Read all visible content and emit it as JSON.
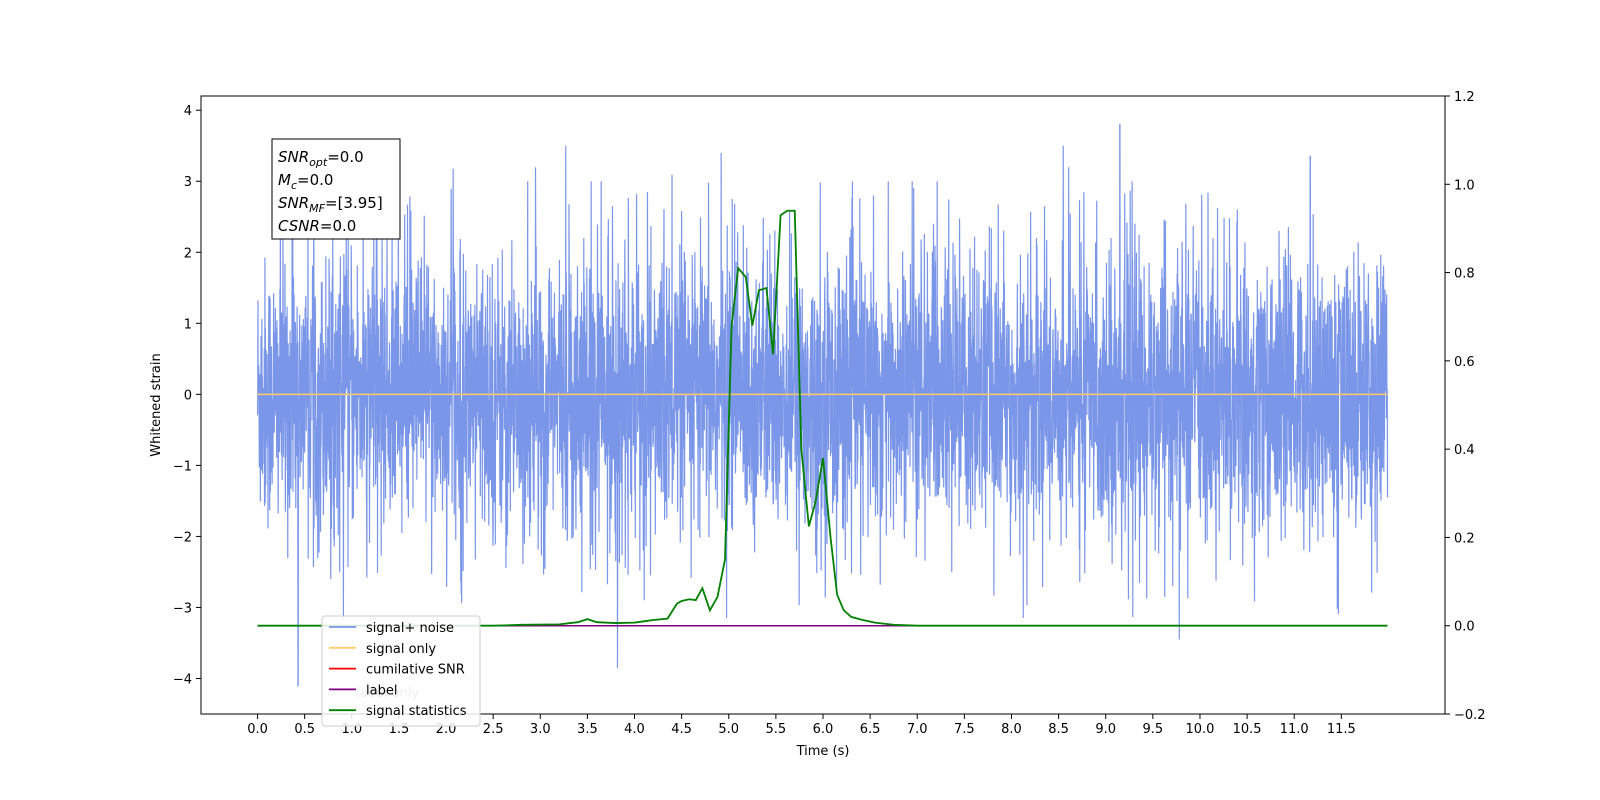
{
  "chart_data": {
    "type": "line",
    "xlabel": "Time (s)",
    "ylabel": "Whitened strain",
    "x_ticks": [
      "0.0",
      "0.5",
      "1.0",
      "1.5",
      "2.0",
      "2.5",
      "3.0",
      "3.5",
      "4.0",
      "4.5",
      "5.0",
      "5.5",
      "6.0",
      "6.5",
      "7.0",
      "7.5",
      "8.0",
      "8.5",
      "9.0",
      "9.5",
      "10.0",
      "10.5",
      "11.0",
      "11.5"
    ],
    "y_ticks": [
      "4",
      "3",
      "2",
      "1",
      "0",
      "−1",
      "−2",
      "−3",
      "−4"
    ],
    "y2_ticks": [
      "1.2",
      "1.0",
      "0.8",
      "0.6",
      "0.4",
      "0.2",
      "0.0",
      "−0.2"
    ],
    "xlim": [
      -0.6,
      12.6
    ],
    "ylim": [
      -4.5,
      4.2
    ],
    "y2lim": [
      -0.2,
      1.2
    ],
    "grid": false,
    "annotation": [
      {
        "base": "SNR",
        "sub": "opt",
        "value": "=0.0"
      },
      {
        "base": "M",
        "sub": "c",
        "value": "=0.0"
      },
      {
        "base": "SNR",
        "sub": "MF",
        "value": "=[3.95]"
      },
      {
        "base": "CSNR",
        "sub": "",
        "value": "=0.0"
      }
    ],
    "legend_position": "lower-left",
    "legend": [
      {
        "label": "signal+ noise",
        "color": "#7a96e8"
      },
      {
        "label": "signal only",
        "color": "#ffcc66"
      },
      {
        "label": "cumilative SNR",
        "color": "#ff0000"
      },
      {
        "label": "label",
        "color": "#800080"
      },
      {
        "label": "signal statistics",
        "color": "#008000"
      }
    ],
    "hidden_legend_text": "label only",
    "series": [
      {
        "name": "signal+ noise",
        "axis": "left",
        "color": "#7a96e8",
        "x_range": [
          0.0,
          11.99
        ],
        "typical_amplitude": 1.4,
        "extreme_spikes": [
          {
            "x": 0.43,
            "y": -4.1
          },
          {
            "x": 3.82,
            "y": -3.85
          },
          {
            "x": 9.78,
            "y": -3.45
          },
          {
            "x": 9.15,
            "y": 3.8
          },
          {
            "x": 3.27,
            "y": 3.5
          },
          {
            "x": 8.55,
            "y": 3.5
          },
          {
            "x": 4.92,
            "y": 3.4
          },
          {
            "x": 11.17,
            "y": 3.35
          }
        ]
      },
      {
        "name": "signal only",
        "axis": "left",
        "color": "#ffcc66",
        "x": [
          0.0,
          11.99
        ],
        "y": [
          0.0,
          0.0
        ]
      },
      {
        "name": "label",
        "axis": "right",
        "color": "#800080",
        "x": [
          0.0,
          11.99
        ],
        "y": [
          0.0,
          0.0
        ]
      },
      {
        "name": "signal statistics",
        "axis": "right",
        "color": "#008000",
        "x": [
          0.0,
          2.5,
          2.8,
          3.2,
          3.4,
          3.5,
          3.6,
          3.8,
          4.0,
          4.1,
          4.2,
          4.35,
          4.45,
          4.5,
          4.58,
          4.65,
          4.72,
          4.8,
          4.88,
          4.96,
          5.03,
          5.1,
          5.18,
          5.25,
          5.32,
          5.4,
          5.47,
          5.55,
          5.62,
          5.7,
          5.77,
          5.85,
          5.92,
          6.0,
          6.08,
          6.15,
          6.22,
          6.3,
          6.4,
          6.55,
          6.75,
          7.0,
          11.99
        ],
        "y": [
          0.0,
          0.0,
          0.002,
          0.003,
          0.008,
          0.015,
          0.008,
          0.006,
          0.007,
          0.01,
          0.013,
          0.016,
          0.05,
          0.056,
          0.06,
          0.058,
          0.085,
          0.035,
          0.065,
          0.15,
          0.68,
          0.81,
          0.79,
          0.68,
          0.76,
          0.765,
          0.615,
          0.93,
          0.94,
          0.94,
          0.4,
          0.225,
          0.28,
          0.38,
          0.2,
          0.07,
          0.035,
          0.02,
          0.014,
          0.007,
          0.002,
          0.0,
          0.0
        ]
      }
    ]
  }
}
